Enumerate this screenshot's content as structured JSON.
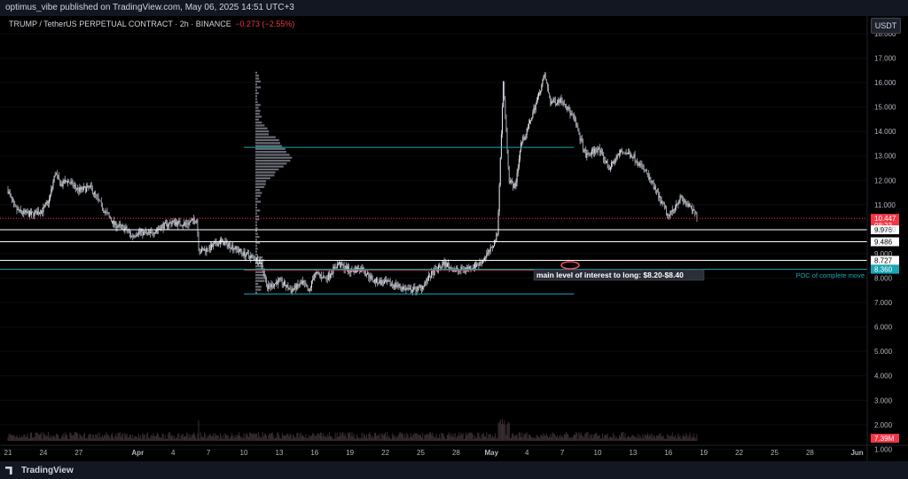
{
  "header": {
    "publisher_line": "optimus_vibe published on TradingView.com, May 06, 2025 14:51 UTC+3",
    "symbol_line": "TRUMP / TetherUS PERPETUAL CONTRACT · 2h · BINANCE",
    "change": "−0.273 (−2.55%)",
    "unit": "USDT"
  },
  "footer": {
    "brand": "TradingView"
  },
  "colors": {
    "background": "#000000",
    "candle_up": "#d1d4dc",
    "candle_down": "#d1d4dc",
    "cyan": "#17a6b5",
    "red_level": "#f23645",
    "white_level": "#ffffff"
  },
  "chart_data": {
    "type": "candlestick",
    "title": "TRUMP / TetherUS PERPETUAL CONTRACT · 2h · BINANCE",
    "ylim": [
      0.5,
      18.5
    ],
    "yticks": [
      "1.000",
      "2.000",
      "3.000",
      "4.000",
      "5.000",
      "6.000",
      "7.000",
      "8.000",
      "9.000",
      "10.000",
      "11.000",
      "12.000",
      "13.000",
      "14.000",
      "15.000",
      "16.000",
      "17.000",
      "18.000"
    ],
    "xticks": [
      "21",
      "24",
      "27",
      "Apr",
      "4",
      "7",
      "10",
      "13",
      "16",
      "19",
      "22",
      "25",
      "28",
      "May",
      "4",
      "7",
      "10",
      "13",
      "16",
      "19",
      "22",
      "25",
      "28",
      "Jun"
    ],
    "xtick_days": [
      0,
      3,
      6,
      11,
      14,
      17,
      20,
      23,
      26,
      29,
      32,
      35,
      38,
      41,
      44,
      47,
      50,
      53,
      56,
      59,
      62,
      65,
      68,
      72
    ],
    "series_path": [
      [
        0,
        11.6
      ],
      [
        0.5,
        10.9
      ],
      [
        1,
        10.7
      ],
      [
        2,
        10.6
      ],
      [
        3,
        10.8
      ],
      [
        3.5,
        11.2
      ],
      [
        4,
        12.3
      ],
      [
        4.5,
        11.8
      ],
      [
        5,
        12.0
      ],
      [
        6,
        11.6
      ],
      [
        7,
        11.7
      ],
      [
        7.5,
        11.3
      ],
      [
        8,
        10.9
      ],
      [
        9,
        10.2
      ],
      [
        10,
        10.0
      ],
      [
        10.5,
        9.7
      ],
      [
        11,
        9.9
      ],
      [
        12,
        9.8
      ],
      [
        13,
        10.1
      ],
      [
        14,
        10.3
      ],
      [
        15,
        10.2
      ],
      [
        16,
        10.4
      ],
      [
        16.2,
        9.1
      ],
      [
        17,
        9.2
      ],
      [
        18,
        9.5
      ],
      [
        19,
        9.3
      ],
      [
        20,
        9.0
      ],
      [
        21,
        8.8
      ],
      [
        21.5,
        8.6
      ],
      [
        22,
        7.6
      ],
      [
        23,
        7.9
      ],
      [
        24,
        7.5
      ],
      [
        25,
        7.8
      ],
      [
        25.5,
        7.4
      ],
      [
        26,
        8.2
      ],
      [
        27,
        8.0
      ],
      [
        28,
        8.6
      ],
      [
        29,
        8.3
      ],
      [
        30,
        8.4
      ],
      [
        31,
        7.9
      ],
      [
        32,
        7.8
      ],
      [
        33,
        7.7
      ],
      [
        34,
        7.5
      ],
      [
        35,
        7.6
      ],
      [
        36,
        8.2
      ],
      [
        37,
        8.6
      ],
      [
        38,
        8.3
      ],
      [
        39,
        8.4
      ],
      [
        40,
        8.6
      ],
      [
        41,
        9.2
      ],
      [
        41.5,
        9.8
      ],
      [
        42,
        16.0
      ],
      [
        42.5,
        12.0
      ],
      [
        43,
        11.7
      ],
      [
        43.5,
        13.5
      ],
      [
        44,
        14.0
      ],
      [
        45,
        15.5
      ],
      [
        45.5,
        16.3
      ],
      [
        46,
        15.2
      ],
      [
        47,
        15.3
      ],
      [
        48,
        14.5
      ],
      [
        49,
        13.0
      ],
      [
        50,
        13.3
      ],
      [
        51,
        12.5
      ],
      [
        52,
        13.2
      ],
      [
        53,
        13.0
      ],
      [
        54,
        12.4
      ],
      [
        55,
        11.5
      ],
      [
        56,
        10.5
      ],
      [
        57,
        11.3
      ],
      [
        58,
        10.8
      ],
      [
        58.5,
        10.5
      ]
    ],
    "levels": [
      {
        "value": 10.447,
        "color": "#f23645",
        "label": "10.447",
        "sublabel": "08:23",
        "style": "dotted"
      },
      {
        "value": 9.976,
        "color": "#ffffff",
        "label": "9.976"
      },
      {
        "value": 9.486,
        "color": "#ffffff",
        "label": "9.486"
      },
      {
        "value": 8.727,
        "color": "#ffffff",
        "label": "8.727"
      },
      {
        "value": 8.36,
        "color": "#17a6b5",
        "label": "8.360"
      }
    ],
    "segments": [
      {
        "y": 13.35,
        "x1": 20,
        "x2": 48,
        "color": "#17a6b5"
      },
      {
        "y": 7.35,
        "x1": 20,
        "x2": 48,
        "color": "#17a6b5"
      },
      {
        "y": 8.33,
        "x1": 20,
        "x2": 48,
        "color": "#f23645"
      }
    ],
    "annotations": [
      {
        "text": "main level of interest to long: $8.20-$8.40"
      },
      {
        "text": "POC of complete move"
      }
    ],
    "volume_label": "7.39M"
  }
}
